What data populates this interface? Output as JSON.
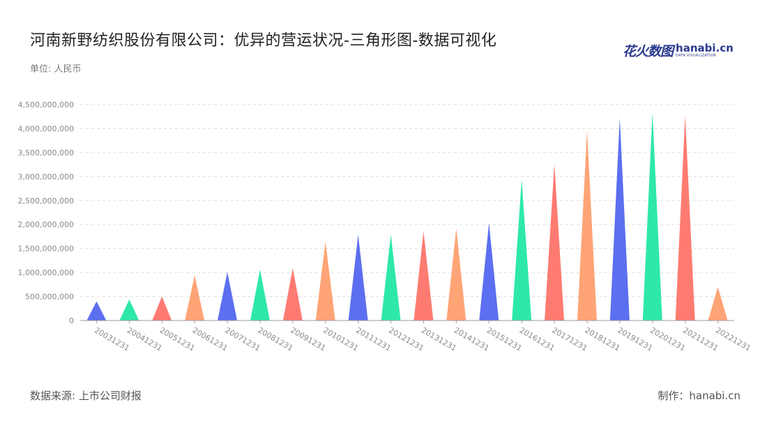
{
  "title": "河南新野纺织股份有限公司：优异的营运状况-三角形图-数据可视化",
  "unit_label": "单位: 人民币",
  "logo": {
    "cn": "花火数图",
    "en": "hanabi.cn",
    "sub": "DATA VISUALIZATION"
  },
  "footer": {
    "source": "数据来源: 上市公司财报",
    "credit": "制作：hanabi.cn"
  },
  "colors": {
    "palette": [
      "#5b6ff0",
      "#2ee8aa",
      "#ff7b72",
      "#ffa476"
    ],
    "grid": "#dddddd",
    "axis_text": "#8a8a8a"
  },
  "chart_data": {
    "type": "bar",
    "mark": "triangle",
    "categories": [
      "20031231",
      "20041231",
      "20051231",
      "20061231",
      "20071231",
      "20081231",
      "20091231",
      "20101231",
      "20111231",
      "20121231",
      "20131231",
      "20141231",
      "20151231",
      "20161231",
      "20171231",
      "20181231",
      "20191231",
      "20201231",
      "20211231",
      "20221231"
    ],
    "values": [
      400000000,
      440000000,
      500000000,
      940000000,
      1010000000,
      1060000000,
      1090000000,
      1640000000,
      1790000000,
      1790000000,
      1860000000,
      1920000000,
      2030000000,
      2940000000,
      3260000000,
      3960000000,
      4220000000,
      4340000000,
      4280000000,
      700000000
    ],
    "bar_colors": [
      "#5b6ff0",
      "#2ee8aa",
      "#ff7b72",
      "#ffa476",
      "#5b6ff0",
      "#2ee8aa",
      "#ff7b72",
      "#ffa476",
      "#5b6ff0",
      "#2ee8aa",
      "#ff7b72",
      "#ffa476",
      "#5b6ff0",
      "#2ee8aa",
      "#ff7b72",
      "#ffa476",
      "#5b6ff0",
      "#2ee8aa",
      "#ff7b72",
      "#ffa476"
    ],
    "ylim": [
      0,
      4500000000
    ],
    "yticks": [
      0,
      500000000,
      1000000000,
      1500000000,
      2000000000,
      2500000000,
      3000000000,
      3500000000,
      4000000000,
      4500000000
    ],
    "ytick_labels": [
      "0",
      "500,000,000",
      "1,000,000,000",
      "1,500,000,000",
      "2,000,000,000",
      "2,500,000,000",
      "3,000,000,000",
      "3,500,000,000",
      "4,000,000,000",
      "4,500,000,000"
    ],
    "grid": true,
    "xlabel": "",
    "ylabel": ""
  }
}
